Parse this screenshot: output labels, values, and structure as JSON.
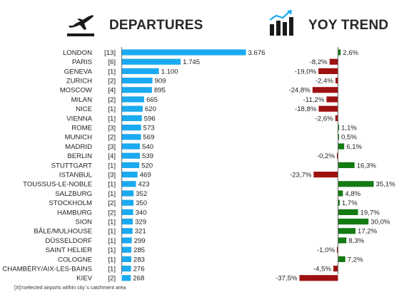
{
  "headers": {
    "departures": "DEPARTURES",
    "trend": "YOY TREND"
  },
  "icons": {
    "departures": "airplane-takeoff-icon",
    "trend": "bar-chart-trend-icon"
  },
  "colors": {
    "departure_bar": "#1aaaf0",
    "trend_positive": "#147a14",
    "trend_negative": "#9e1111",
    "axis": "#6a6a6a"
  },
  "footnote": "[X]=selected airports within city´s catchment area",
  "chart_data": [
    {
      "type": "bar",
      "orientation": "horizontal",
      "title": "DEPARTURES",
      "categories": [
        "LONDON",
        "PARIS",
        "GENEVA",
        "ZURICH",
        "MOSCOW",
        "MILAN",
        "NICE",
        "VIENNA",
        "ROME",
        "MUNICH",
        "MADRID",
        "BERLIN",
        "STUTTGART",
        "ISTANBUL",
        "TOUSSUS-LE-NOBLE",
        "SALZBURG",
        "STOCKHOLM",
        "HAMBURG",
        "SION",
        "BÂLE/MULHOUSE",
        "DÜSSELDORF",
        "SAINT HELIER",
        "COLOGNE",
        "CHAMBÉRY/AIX-LES-BAINS",
        "KIEV"
      ],
      "airport_counts": [
        "[13]",
        "[6]",
        "[1]",
        "[2]",
        "[4]",
        "[2]",
        "[1]",
        "[1]",
        "[3]",
        "[2]",
        "[3]",
        "[4]",
        "[1]",
        "[3]",
        "[1]",
        "[1]",
        "[2]",
        "[2]",
        "[1]",
        "[1]",
        "[1]",
        "[1]",
        "[1]",
        "[1]",
        "[2]"
      ],
      "values": [
        3676,
        1745,
        1100,
        909,
        895,
        665,
        620,
        596,
        573,
        569,
        540,
        539,
        520,
        469,
        423,
        352,
        350,
        340,
        329,
        321,
        299,
        285,
        283,
        276,
        268
      ],
      "value_labels": [
        "3.676",
        "1.745",
        "1.100",
        "909",
        "895",
        "665",
        "620",
        "596",
        "573",
        "569",
        "540",
        "539",
        "520",
        "469",
        "423",
        "352",
        "350",
        "340",
        "329",
        "321",
        "299",
        "285",
        "283",
        "276",
        "268"
      ],
      "xlim": [
        0,
        3676
      ]
    },
    {
      "type": "bar",
      "orientation": "horizontal",
      "title": "YOY TREND",
      "categories": [
        "LONDON",
        "PARIS",
        "GENEVA",
        "ZURICH",
        "MOSCOW",
        "MILAN",
        "NICE",
        "VIENNA",
        "ROME",
        "MUNICH",
        "MADRID",
        "BERLIN",
        "STUTTGART",
        "ISTANBUL",
        "TOUSSUS-LE-NOBLE",
        "SALZBURG",
        "STOCKHOLM",
        "HAMBURG",
        "SION",
        "BÂLE/MULHOUSE",
        "DÜSSELDORF",
        "SAINT HELIER",
        "COLOGNE",
        "CHAMBÉRY/AIX-LES-BAINS",
        "KIEV"
      ],
      "values": [
        2.6,
        -8.2,
        -19.0,
        -2.4,
        -24.8,
        -11.2,
        -18.8,
        -2.6,
        1.1,
        0.5,
        6.1,
        -0.2,
        16.3,
        -23.7,
        35.1,
        4.8,
        1.7,
        19.7,
        30.0,
        17.2,
        8.3,
        -1.0,
        7.2,
        -4.5,
        -37.5
      ],
      "value_labels": [
        "2,6%",
        "-8,2%",
        "-19,0%",
        "-2,4%",
        "-24,8%",
        "-11,2%",
        "-18,8%",
        "-2,6%",
        "1,1%",
        "0,5%",
        "6,1%",
        "-0,2%",
        "16,3%",
        "-23,7%",
        "35,1%",
        "4,8%",
        "1,7%",
        "19,7%",
        "30,0%",
        "17,2%",
        "8,3%",
        "-1,0%",
        "7,2%",
        "-4,5%",
        "-37,5%"
      ],
      "unit": "%",
      "xlim": [
        -37.5,
        35.1
      ]
    }
  ]
}
